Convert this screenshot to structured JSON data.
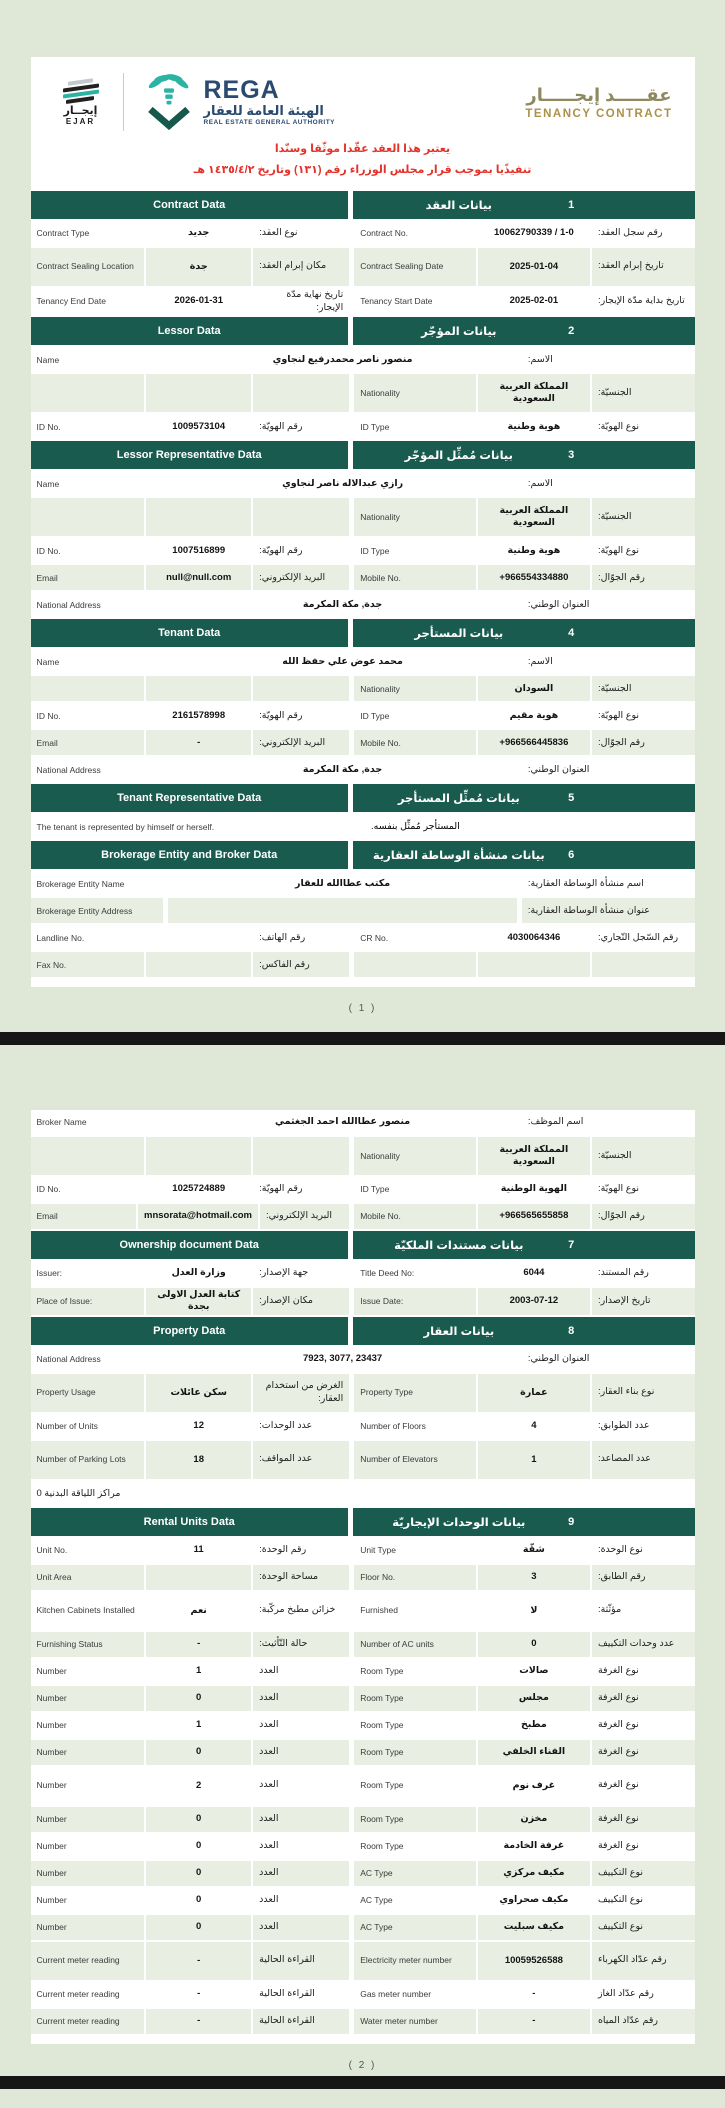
{
  "colors": {
    "page_background": "#dfe8d6",
    "section_header": "#1a5b4f",
    "row_shade": "#e8eee2",
    "notice_red": "#e4332b",
    "title_gold": "#ab9149",
    "title_olive": "#8f895f",
    "logo_navy": "#2a4a70",
    "logo_teal": "#2bb3a4",
    "separator": "#161616"
  },
  "header": {
    "ejar_logo": {
      "arabic": "إيجــار",
      "latin": "EJAR"
    },
    "rega_logo": {
      "name": "REGA",
      "arabic": "الهيئة العامة للعقار",
      "latin": "REAL ESTATE GENERAL AUTHORITY"
    },
    "title_ar": "عقـــــد إيجـــــار",
    "title_en": "TENANCY CONTRACT",
    "notice_lines": [
      "يعتبر هذا العقد عقّدا موثّقا وسنّدا",
      "تنفيذًيا بموجب قرار مجلس الوزراء رقم (١٣١) وتاريخ ١٤٣٥/٤/٢ هـ"
    ]
  },
  "pages": [
    {
      "footer": "( 1 )",
      "tables": [
        {
          "num": "1",
          "title_en": "Contract Data",
          "title_ar": "بيانات العقد",
          "rows": [
            {
              "kind": "pair",
              "shaded": false,
              "right": {
                "en": "Contract No.",
                "val": "10062790339 / 1-0",
                "ar": "رقم سجل العقد:"
              },
              "left": {
                "en": "Contract Type",
                "val": "جديد",
                "ar": "نوع العقد:"
              }
            },
            {
              "kind": "pair",
              "shaded": true,
              "tall": true,
              "right": {
                "en": "Contract Sealing Date",
                "val": "2025-01-04",
                "ar": "تاريخ إبرام العقد:"
              },
              "left": {
                "en": "Contract Sealing Location",
                "val": "جدة",
                "ar": "مكان إبرام العقد:"
              }
            },
            {
              "kind": "pair",
              "shaded": false,
              "right": {
                "en": "Tenancy Start Date",
                "val": "2025-02-01",
                "ar": "تاريخ بداية مدّة الإيجار:"
              },
              "left": {
                "en": "Tenancy End Date",
                "val": "2026-01-31",
                "ar": "تاريخ نهاية مدّة الإيجار:"
              }
            }
          ]
        },
        {
          "num": "2",
          "title_en": "Lessor Data",
          "title_ar": "بيانات المؤجّر",
          "rows": [
            {
              "kind": "full",
              "shaded": false,
              "en": "Name",
              "val": "منصور ناصر محمدرفيع لنجاوي",
              "ar": "الاسم:"
            },
            {
              "kind": "pair",
              "shaded": true,
              "tall": true,
              "right": {
                "en": "Nationality",
                "val": "المملكة العربية السعودية",
                "ar": "الجنسيّة:"
              },
              "left": {
                "en": "",
                "val": "",
                "ar": ""
              }
            },
            {
              "kind": "pair",
              "shaded": false,
              "right": {
                "en": "ID Type",
                "val": "هوية وطنية",
                "ar": "نوع الهويّة:"
              },
              "left": {
                "en": "ID No.",
                "val": "1009573104",
                "ar": "رقم الهويّة:"
              }
            }
          ]
        },
        {
          "num": "3",
          "title_en": "Lessor Representative Data",
          "title_ar": "بيانات مُمثِّل المؤجّر",
          "rows": [
            {
              "kind": "full",
              "shaded": false,
              "en": "Name",
              "val": "رازي عبدالاله ناصر لنجاوي",
              "ar": "الاسم:"
            },
            {
              "kind": "pair",
              "shaded": true,
              "tall": true,
              "right": {
                "en": "Nationality",
                "val": "المملكة العربية السعودية",
                "ar": "الجنسيّة:"
              },
              "left": {
                "en": "",
                "val": "",
                "ar": ""
              }
            },
            {
              "kind": "pair",
              "shaded": false,
              "right": {
                "en": "ID Type",
                "val": "هوية وطنية",
                "ar": "نوع الهويّة:"
              },
              "left": {
                "en": "ID No.",
                "val": "1007516899",
                "ar": "رقم الهويّة:"
              }
            },
            {
              "kind": "pair",
              "shaded": true,
              "right": {
                "en": "Mobile No.",
                "val": "+966554334880",
                "ar": "رقم الجوّال:"
              },
              "left": {
                "en": "Email",
                "val": "null@null.com",
                "ar": "البريد الإلكتروني:"
              }
            },
            {
              "kind": "full",
              "shaded": false,
              "en": "National Address",
              "val": "جدة, مكة المكرمة",
              "ar": "العنوان الوطني:"
            }
          ]
        },
        {
          "num": "4",
          "title_en": "Tenant Data",
          "title_ar": "بيانات المستأجر",
          "rows": [
            {
              "kind": "full",
              "shaded": false,
              "en": "Name",
              "val": "محمد عوض علي حفظ الله",
              "ar": "الاسم:"
            },
            {
              "kind": "pair",
              "shaded": true,
              "right": {
                "en": "Nationality",
                "val": "السودان",
                "ar": "الجنسيّة:"
              },
              "left": {
                "en": "",
                "val": "",
                "ar": ""
              }
            },
            {
              "kind": "pair",
              "shaded": false,
              "right": {
                "en": "ID Type",
                "val": "هوية مقيم",
                "ar": "نوع الهويّة:"
              },
              "left": {
                "en": "ID No.",
                "val": "2161578998",
                "ar": "رقم الهويّة:"
              }
            },
            {
              "kind": "pair",
              "shaded": true,
              "right": {
                "en": "Mobile No.",
                "val": "+966566445836",
                "ar": "رقم الجوّال:"
              },
              "left": {
                "en": "Email",
                "val": "-",
                "ar": "البريد الإلكتروني:"
              }
            },
            {
              "kind": "full",
              "shaded": false,
              "en": "National Address",
              "val": "جدة, مكة المكرمة",
              "ar": "العنوان الوطني:"
            }
          ]
        },
        {
          "num": "5",
          "title_en": "Tenant Representative Data",
          "title_ar": "بيانات مُمثِّل المستأجر",
          "rows": [
            {
              "kind": "note",
              "shaded": false,
              "en": "The tenant is represented by himself or herself.",
              "ar": "المستأجر مُمثِّل بنفسه."
            }
          ]
        },
        {
          "num": "6",
          "title_en": "Brokerage Entity and Broker Data",
          "title_ar": "بيانات منشأة الوساطة العقارية",
          "rows": [
            {
              "kind": "full",
              "shaded": false,
              "en": "Brokerage Entity Name",
              "val": "مكتب عطاالله للعقار",
              "ar": "اسم منشأة الوساطة العقارية:"
            },
            {
              "kind": "full",
              "shaded": true,
              "en": "Brokerage Entity Address",
              "val": "",
              "ar": "عنوان منشأة الوساطة العقارية:"
            },
            {
              "kind": "pair",
              "shaded": false,
              "right": {
                "en": "CR No.",
                "val": "4030064346",
                "ar": "رقم السّجل التّجاري:"
              },
              "left": {
                "en": "Landline No.",
                "val": "",
                "ar": "رقم الهاتف:"
              }
            },
            {
              "kind": "pair",
              "shaded": true,
              "right": {
                "en": "",
                "val": "",
                "ar": ""
              },
              "left": {
                "en": "Fax No.",
                "val": "",
                "ar": "رقم الفاكس:"
              }
            }
          ]
        }
      ]
    },
    {
      "footer": "( 2 )",
      "tables": [
        {
          "rows": [
            {
              "kind": "full",
              "shaded": false,
              "en": "Broker Name",
              "val": "منصور عطاالله احمد الجغثمي",
              "ar": "اسم الموظف:"
            },
            {
              "kind": "pair",
              "shaded": true,
              "tall": true,
              "right": {
                "en": "Nationality",
                "val": "المملكة العربية السعودية",
                "ar": "الجنسيّة:"
              },
              "left": {
                "en": "",
                "val": "",
                "ar": ""
              }
            },
            {
              "kind": "pair",
              "shaded": false,
              "right": {
                "en": "ID Type",
                "val": "الهوية الوطنية",
                "ar": "نوع الهويّة:"
              },
              "left": {
                "en": "ID No.",
                "val": "1025724889",
                "ar": "رقم الهويّة:"
              }
            },
            {
              "kind": "pair",
              "shaded": true,
              "right": {
                "en": "Mobile No.",
                "val": "+966565655858",
                "ar": "رقم الجوّال:"
              },
              "left": {
                "en": "Email",
                "val": "mnsorata@hotmail.com",
                "ar": "البريد الإلكتروني:"
              }
            }
          ]
        },
        {
          "num": "7",
          "title_en": "Ownership document Data",
          "title_ar": "بيانات مستندات الملكيّة",
          "rows": [
            {
              "kind": "pair",
              "shaded": false,
              "right": {
                "en": "Title Deed No:",
                "val": "6044",
                "ar": "رقم المستند:"
              },
              "left": {
                "en": "Issuer:",
                "val": "وزارة العدل",
                "ar": "جهة الإصدار:"
              }
            },
            {
              "kind": "pair",
              "shaded": true,
              "right": {
                "en": "Issue Date:",
                "val": "2003-07-12",
                "ar": "تاريخ الإصدار:"
              },
              "left": {
                "en": "Place of Issue:",
                "val": "كتابة العدل الاولى بجدة",
                "ar": "مكان الإصدار:"
              }
            }
          ]
        },
        {
          "num": "8",
          "title_en": "Property Data",
          "title_ar": "بيانات العقار",
          "rows": [
            {
              "kind": "full",
              "shaded": false,
              "en": "National Address",
              "val": "7923, 3077, 23437",
              "ar": "العنوان الوطني:"
            },
            {
              "kind": "pair",
              "shaded": true,
              "tall": true,
              "right": {
                "en": "Property Type",
                "val": "عمارة",
                "ar": "نوع بناء العقار:"
              },
              "left": {
                "en": "Property Usage",
                "val": "سكن عائلات",
                "ar": "الغرض من استخدام العقار:"
              }
            },
            {
              "kind": "pair",
              "shaded": false,
              "right": {
                "en": "Number of Floors",
                "val": "4",
                "ar": "عدد الطوابق:"
              },
              "left": {
                "en": "Number of Units",
                "val": "12",
                "ar": "عدد الوحدات:"
              }
            },
            {
              "kind": "pair",
              "shaded": true,
              "tall": true,
              "right": {
                "en": "Number of Elevators",
                "val": "1",
                "ar": "عدد المصاعد:"
              },
              "left": {
                "en": "Number of Parking Lots",
                "val": "18",
                "ar": "عدد المواقف:"
              }
            },
            {
              "kind": "arnote",
              "shaded": false,
              "ar": "مراكز اللياقة البدنية 0"
            }
          ]
        },
        {
          "num": "9",
          "title_en": "Rental Units Data",
          "title_ar": "بيانات الوحدات الإيجاريّة",
          "rows": [
            {
              "kind": "pair",
              "shaded": false,
              "right": {
                "en": "Unit Type",
                "val": "شقّة",
                "ar": "نوع الوحدة:"
              },
              "left": {
                "en": "Unit No.",
                "val": "11",
                "ar": "رقم الوحدة:"
              }
            },
            {
              "kind": "pair",
              "shaded": true,
              "right": {
                "en": "Floor No.",
                "val": "3",
                "ar": "رقم الطابق:"
              },
              "left": {
                "en": "Unit Area",
                "val": "",
                "ar": "مساحة الوحدة:"
              }
            },
            {
              "kind": "pair",
              "shaded": false,
              "tall": true,
              "right": {
                "en": "Furnished",
                "val": "لا",
                "ar": "مؤثّثة:"
              },
              "left": {
                "en": "Kitchen Cabinets Installed",
                "val": "نعم",
                "ar": "خزائن مطبخ مركّبة:"
              }
            },
            {
              "kind": "pair",
              "shaded": true,
              "right": {
                "en": "Number of AC units",
                "val": "0",
                "ar": "عدد وحدات التكييف"
              },
              "left": {
                "en": "Furnishing Status",
                "val": "-",
                "ar": "حالة التّأثيث:"
              }
            },
            {
              "kind": "pair",
              "shaded": false,
              "right": {
                "en": "Room Type",
                "val": "صالات",
                "ar": "نوع الغرفة"
              },
              "left": {
                "en": "Number",
                "val": "1",
                "ar": "العدد"
              }
            },
            {
              "kind": "pair",
              "shaded": true,
              "right": {
                "en": "Room Type",
                "val": "مجلس",
                "ar": "نوع الغرفة"
              },
              "left": {
                "en": "Number",
                "val": "0",
                "ar": "العدد"
              }
            },
            {
              "kind": "pair",
              "shaded": false,
              "right": {
                "en": "Room Type",
                "val": "مطبخ",
                "ar": "نوع الغرفة"
              },
              "left": {
                "en": "Number",
                "val": "1",
                "ar": "العدد"
              }
            },
            {
              "kind": "pair",
              "shaded": true,
              "right": {
                "en": "Room Type",
                "val": "الفناء الخلفي",
                "ar": "نوع الغرفة"
              },
              "left": {
                "en": "Number",
                "val": "0",
                "ar": "العدد"
              }
            },
            {
              "kind": "pair",
              "shaded": false,
              "tall": true,
              "right": {
                "en": "Room Type",
                "val": "غرف نوم",
                "ar": "نوع الغرفة"
              },
              "left": {
                "en": "Number",
                "val": "2",
                "ar": "العدد"
              }
            },
            {
              "kind": "pair",
              "shaded": true,
              "right": {
                "en": "Room Type",
                "val": "مخزن",
                "ar": "نوع الغرفة"
              },
              "left": {
                "en": "Number",
                "val": "0",
                "ar": "العدد"
              }
            },
            {
              "kind": "pair",
              "shaded": false,
              "right": {
                "en": "Room Type",
                "val": "غرفة الخادمة",
                "ar": "نوع الغرفة"
              },
              "left": {
                "en": "Number",
                "val": "0",
                "ar": "العدد"
              }
            },
            {
              "kind": "pair",
              "shaded": true,
              "right": {
                "en": "AC Type",
                "val": "مكيف مركزي",
                "ar": "نوع التكييف"
              },
              "left": {
                "en": "Number",
                "val": "0",
                "ar": "العدد"
              }
            },
            {
              "kind": "pair",
              "shaded": false,
              "right": {
                "en": "AC Type",
                "val": "مكيف صحراوي",
                "ar": "نوع التكييف"
              },
              "left": {
                "en": "Number",
                "val": "0",
                "ar": "العدد"
              }
            },
            {
              "kind": "pair",
              "shaded": true,
              "right": {
                "en": "AC Type",
                "val": "مكيف سبليت",
                "ar": "نوع التكييف"
              },
              "left": {
                "en": "Number",
                "val": "0",
                "ar": "العدد"
              }
            },
            {
              "kind": "pair",
              "shaded": true,
              "tall": true,
              "right": {
                "en": "Electricity meter number",
                "val": "10059526588",
                "ar": "رقم عدّاد الكهرباء"
              },
              "left": {
                "en": "Current meter reading",
                "val": "-",
                "ar": "القراءة الحالية"
              }
            },
            {
              "kind": "pair",
              "shaded": false,
              "right": {
                "en": "Gas meter number",
                "val": "-",
                "ar": "رقم عدّاد الغاز"
              },
              "left": {
                "en": "Current meter reading",
                "val": "-",
                "ar": "القراءة الحالية"
              }
            },
            {
              "kind": "pair",
              "shaded": true,
              "right": {
                "en": "Water meter number",
                "val": "-",
                "ar": "رقم عدّاد المياه"
              },
              "left": {
                "en": "Current meter reading",
                "val": "-",
                "ar": "القراءة الحالية"
              }
            }
          ]
        }
      ]
    }
  ]
}
